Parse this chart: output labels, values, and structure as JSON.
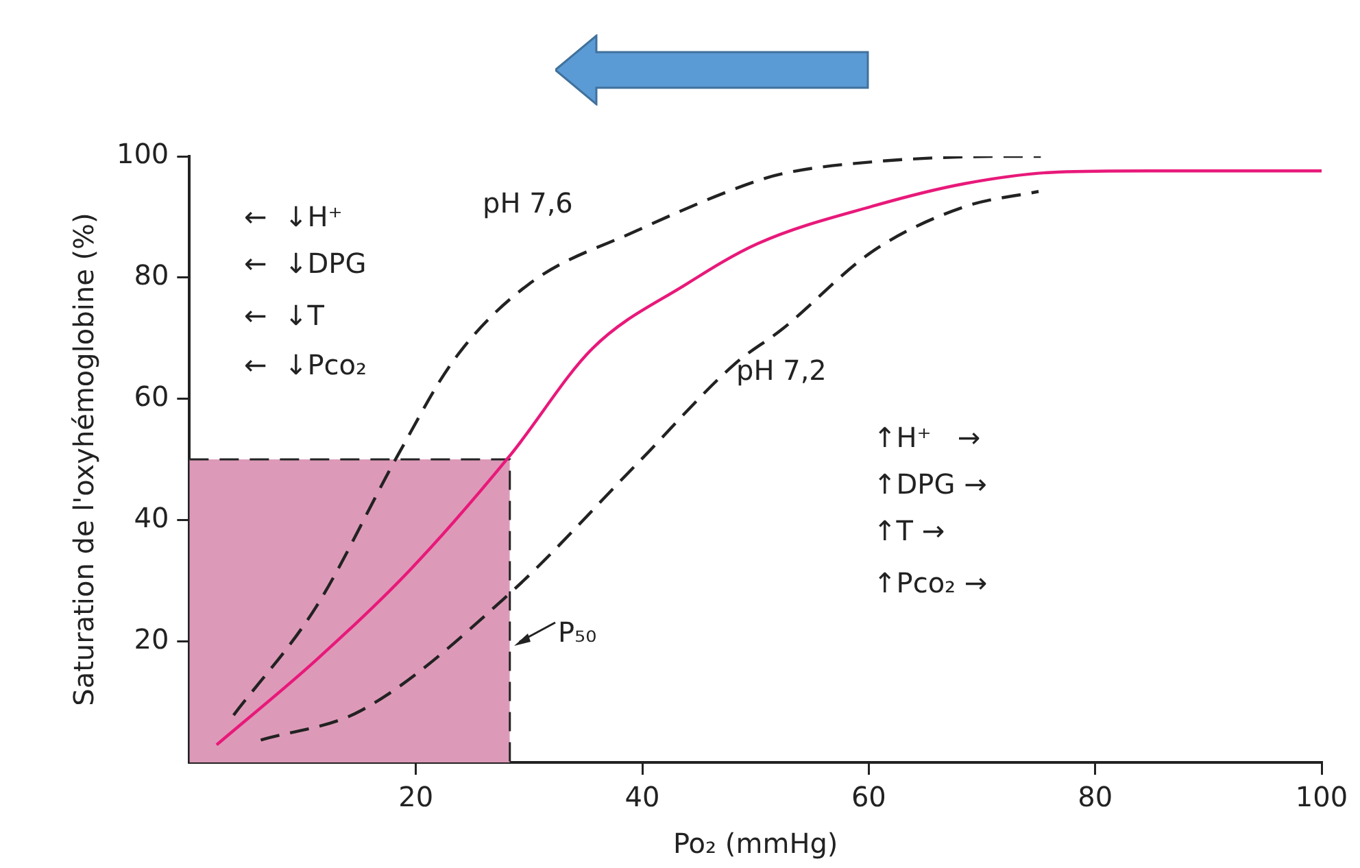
{
  "chart_data": {
    "type": "line",
    "xlabel": "Po₂ (mmHg)",
    "ylabel": "Saturation de l'oxyhémoglobine (%)",
    "xlim": [
      0,
      100
    ],
    "xticks": [
      20,
      40,
      60,
      80,
      100
    ],
    "ylim": [
      0,
      100
    ],
    "yticks": [
      20,
      40,
      60,
      80,
      100
    ],
    "grid": false,
    "legend": false,
    "marker": "none",
    "series": [
      {
        "type": "area",
        "color": "#dd9ab8",
        "line_style": "dashed",
        "x": [
          0,
          28.3,
          28.3
        ],
        "values": [
          50,
          50,
          0
        ]
      },
      {
        "color": "#222222",
        "line_style": "dashed",
        "x": [
          3.9,
          11.2,
          18.5,
          23.4,
          29.9,
          39.6,
          49,
          52.3,
          60.4,
          72.6,
          75.2
        ],
        "values": [
          7.8,
          25.7,
          51,
          66.5,
          78.8,
          87.8,
          95.2,
          97.1,
          99.1,
          100,
          100
        ]
      },
      {
        "color": "#222222",
        "line_style": "dashed",
        "x": [
          6.3,
          15.2,
          28.3,
          39.6,
          48.2,
          52.3,
          60.4,
          68.5,
          75
        ],
        "values": [
          3.7,
          8.6,
          27.9,
          49.4,
          65.8,
          71.4,
          84.4,
          91.7,
          94.2
        ]
      },
      {
        "color": "#e8197a",
        "line_style": "solid",
        "x": [
          2.4,
          11.2,
          19.4,
          28.3,
          35.6,
          43.8,
          50.2,
          60.4,
          68.5,
          76.7,
          84.8,
          100
        ],
        "values": [
          2.9,
          16.9,
          31.6,
          50.6,
          68.3,
          78.8,
          85.6,
          91.8,
          95.5,
          97.4,
          97.6,
          97.6
        ]
      }
    ],
    "annotations": [
      "pH 7,6",
      "pH 7,2",
      "P₅₀",
      "←  ↓H⁺",
      "←  ↓DPG",
      "←  ↓T",
      "←  ↓Pco₂",
      "↑H⁺   →",
      "↑DPG →",
      "↑T →",
      "↑Pco₂ →"
    ]
  }
}
